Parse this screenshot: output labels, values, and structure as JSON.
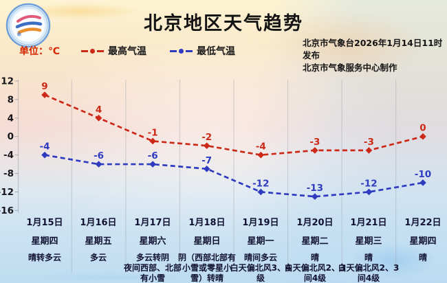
{
  "header": {
    "title": "北京地区天气趋势",
    "unit_label": "单位：℃",
    "legend": [
      {
        "label": "最高气温",
        "color": "#cc2817"
      },
      {
        "label": "最低气温",
        "color": "#2e3bbf"
      }
    ],
    "source_line1": "北京市气象台2026年1月14日11时发布",
    "source_line2": "北京市气象服务中心制作",
    "logo": "气象服务徽标"
  },
  "chart_data": {
    "type": "line",
    "title": "北京地区天气趋势",
    "categories": [
      "1月15日",
      "1月16日",
      "1月17日",
      "1月18日",
      "1月19日",
      "1月20日",
      "1月21日",
      "1月22日"
    ],
    "series": [
      {
        "name": "最高气温",
        "color": "#cc2817",
        "values": [
          9,
          4,
          -1,
          -2,
          -4,
          -3,
          -3,
          0
        ]
      },
      {
        "name": "最低气温",
        "color": "#2e3bbf",
        "values": [
          -4,
          -6,
          -6,
          -7,
          -12,
          -13,
          -12,
          -10
        ]
      }
    ],
    "unit": "℃",
    "ylim": [
      -16,
      12
    ],
    "yticks": [
      12,
      8,
      4,
      0,
      -4,
      -8,
      -12,
      -16
    ],
    "grid": "vertical-separators",
    "line_style": "dashed",
    "legend_position": "top-left"
  },
  "columns": [
    {
      "date": "1月15日",
      "weekday": "星期四",
      "weather": "晴转多云"
    },
    {
      "date": "1月16日",
      "weekday": "星期五",
      "weather": "多云"
    },
    {
      "date": "1月17日",
      "weekday": "星期六",
      "weather": "多云转阴\n夜间西部、北部\n有小雪"
    },
    {
      "date": "1月18日",
      "weekday": "星期日",
      "weather": "阴（西部北部有\n小雪或零星小\n雪）转晴"
    },
    {
      "date": "1月19日",
      "weekday": "星期一",
      "weather": "晴间多云\n白天偏北风3、4\n级"
    },
    {
      "date": "1月20日",
      "weekday": "星期二",
      "weather": "晴\n白天偏北风2、3\n间4级"
    },
    {
      "date": "1月21日",
      "weekday": "星期三",
      "weather": "晴\n白天偏北风2、3\n间4级"
    },
    {
      "date": "1月22日",
      "weekday": "星期四",
      "weather": "晴"
    }
  ]
}
